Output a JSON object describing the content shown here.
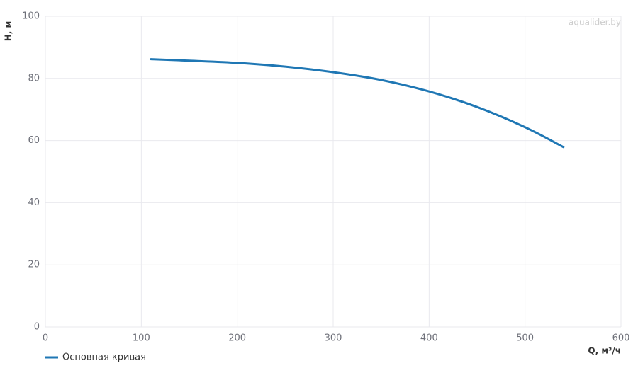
{
  "chart_data": {
    "type": "line",
    "x_label": "Q, м³/ч",
    "y_label": "H, м",
    "watermark": "aqualider.by",
    "x": [
      110,
      150,
      200,
      250,
      300,
      350,
      400,
      450,
      500,
      540
    ],
    "series": [
      {
        "name": "Основная кривая",
        "color": "#1f77b4",
        "values": [
          86.2,
          85.7,
          85,
          83.8,
          82,
          79.5,
          75.8,
          70.8,
          64.3,
          57.9
        ]
      }
    ],
    "xlim": [
      0,
      600
    ],
    "xticks": [
      0,
      100,
      200,
      300,
      400,
      500,
      600
    ],
    "ylim": [
      0,
      100
    ],
    "yticks": [
      0,
      20,
      40,
      60,
      80,
      100
    ],
    "grid": true,
    "legend": "bottom-left"
  }
}
